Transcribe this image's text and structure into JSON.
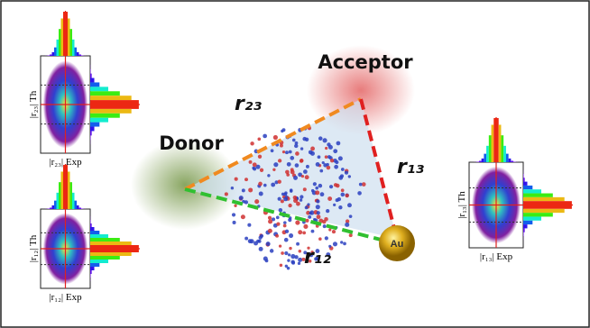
{
  "labels": {
    "acceptor": "Acceptor",
    "donor": "Donor",
    "gold": "Au",
    "r23": "r₂₃",
    "r13": "r₁₃",
    "r12": "r₁₂"
  },
  "insets": [
    {
      "y_label": "|r₂₃| Th",
      "x_label": "|r₂₃| Exp"
    },
    {
      "y_label": "|r₁₂| Th",
      "x_label": "|r₁₂| Exp"
    },
    {
      "y_label": "|r₁₃| Th",
      "x_label": "|r₁₃| Exp"
    }
  ]
}
